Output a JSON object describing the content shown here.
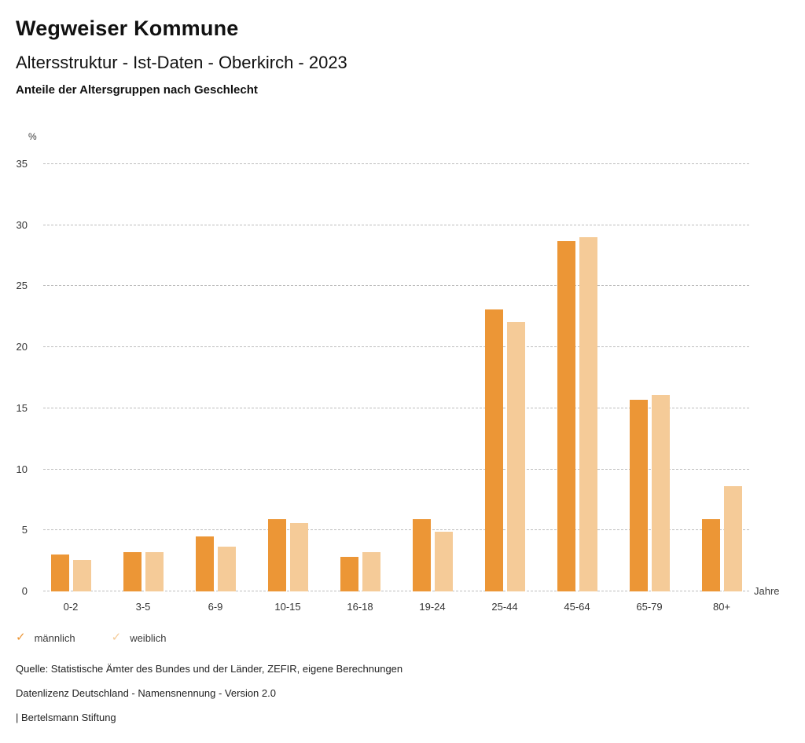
{
  "header": {
    "title": "Wegweiser Kommune",
    "subtitle": "Altersstruktur - Ist-Daten - Oberkirch - 2023",
    "chart_heading": "Anteile der Altersgruppen nach Geschlecht"
  },
  "chart_data": {
    "type": "bar",
    "title": "Anteile der Altersgruppen nach Geschlecht",
    "categories": [
      "0-2",
      "3-5",
      "6-9",
      "10-15",
      "16-18",
      "19-24",
      "25-44",
      "45-64",
      "65-79",
      "80+"
    ],
    "series": [
      {
        "name": "männlich",
        "color": "#EC9636",
        "values": [
          3.0,
          3.2,
          4.5,
          5.9,
          2.8,
          5.9,
          23.1,
          28.7,
          15.7,
          5.9
        ]
      },
      {
        "name": "weiblich",
        "color": "#F5CB98",
        "values": [
          2.6,
          3.2,
          3.7,
          5.6,
          3.2,
          4.9,
          22.1,
          29.0,
          16.1,
          8.6
        ]
      }
    ],
    "xlabel": "Jahre",
    "ylabel": "%",
    "ylim": [
      0,
      35
    ],
    "yticks": [
      0,
      5,
      10,
      15,
      20,
      25,
      30,
      35
    ],
    "grid": true,
    "gridline_color": "#bdbdbd",
    "legend_position": "bottom",
    "legend_marker": "check"
  },
  "footer": {
    "source": "Quelle: Statistische Ämter des Bundes und der Länder, ZEFIR, eigene Berechnungen",
    "license": "Datenlizenz Deutschland - Namensnennung - Version 2.0",
    "attribution": "| Bertelsmann Stiftung"
  }
}
